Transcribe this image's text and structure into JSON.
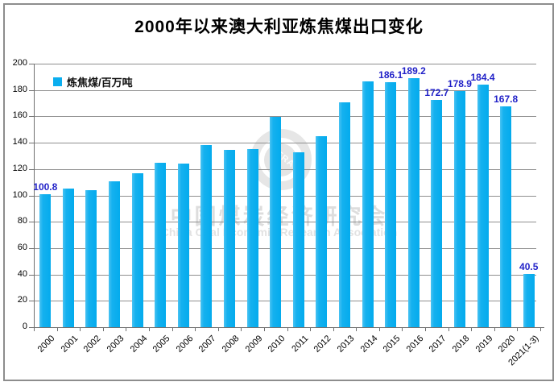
{
  "title": "2000年以来澳大利亚炼焦煤出口变化",
  "legend": {
    "label": "炼焦煤/百万吨",
    "swatch_color": "#0baeef"
  },
  "watermark": {
    "logo_text": "CERA",
    "line1_cn": "中国煤炭经济研究会",
    "line2_en": "China Coal Economic Research Association"
  },
  "chart_data": {
    "type": "bar",
    "title": "2000年以来澳大利亚炼焦煤出口变化",
    "categories": [
      "2000",
      "2001",
      "2002",
      "2003",
      "2004",
      "2005",
      "2006",
      "2007",
      "2008",
      "2009",
      "2010",
      "2011",
      "2012",
      "2013",
      "2014",
      "2015",
      "2016",
      "2017",
      "2018",
      "2019",
      "2020",
      "2021(1-3)"
    ],
    "values": [
      100.8,
      105.5,
      104,
      111,
      117,
      125,
      124,
      138,
      134.5,
      135,
      159.5,
      133,
      145,
      170.5,
      186.5,
      186.1,
      189.2,
      172.7,
      178.9,
      184.4,
      167.8,
      40.5
    ],
    "point_labels": [
      "100.8",
      "",
      "",
      "",
      "",
      "",
      "",
      "",
      "",
      "",
      "",
      "",
      "",
      "",
      "",
      "186.1",
      "189.2",
      "172.7",
      "178.9",
      "184.4",
      "167.8",
      "40.5"
    ],
    "series_name": "炼焦煤/百万吨",
    "xlabel": "",
    "ylabel": "",
    "ylim": [
      0,
      200
    ],
    "ytick_step": 20,
    "grid": true,
    "legend_position": "top-left",
    "bar_color": "#0baeef",
    "data_label_color": "#2222c8"
  }
}
